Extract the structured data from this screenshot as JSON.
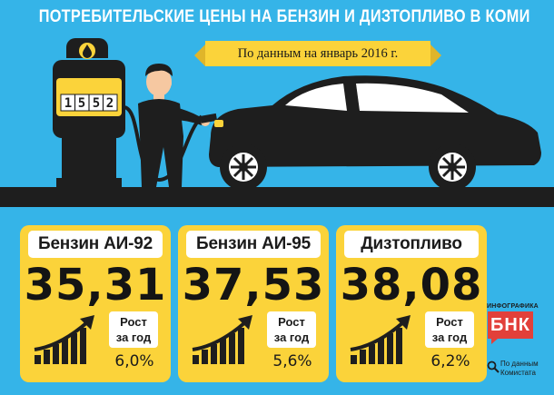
{
  "header": {
    "title": "ПОТРЕБИТЕЛЬСКИЕ ЦЕНЫ НА БЕНЗИН И ДИЗТОПЛИВО В КОМИ",
    "date_note": "По данным на январь 2016 г."
  },
  "pump": {
    "display_digits": [
      "1",
      "5",
      "5",
      "2"
    ]
  },
  "cards": [
    {
      "label": "Бензин АИ-92",
      "price": "35,31",
      "growth_line1": "Рост",
      "growth_line2": "за год",
      "growth_value": "6,0%"
    },
    {
      "label": "Бензин АИ-95",
      "price": "37,53",
      "growth_line1": "Рост",
      "growth_line2": "за год",
      "growth_value": "5,6%"
    },
    {
      "label": "Дизтопливо",
      "price": "38,08",
      "growth_line1": "Рост",
      "growth_line2": "за год",
      "growth_value": "6,2%"
    }
  ],
  "brand": {
    "caption": "ИНФОГРАФИКА",
    "logo": "БНК"
  },
  "source": {
    "line1": "По данным",
    "line2": "Комистата"
  },
  "colors": {
    "background": "#35b4e8",
    "card": "#fbd33a",
    "dark": "#1e1e1e",
    "brand": "#e2403a"
  },
  "icons": [
    "fuel-drop-icon",
    "growth-chart-icon",
    "magnifier-icon"
  ]
}
